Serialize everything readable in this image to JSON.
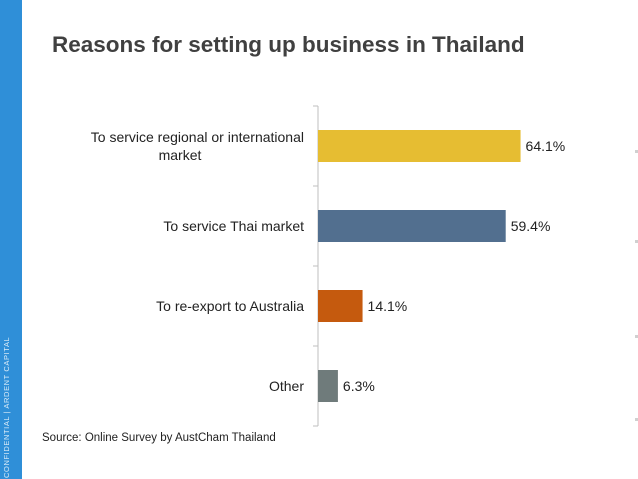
{
  "side_label": "CONFIDENTIAL  |  ARDENT CAPITAL",
  "source": "Source: Online Survey by AustCham Thailand",
  "colors": {
    "side_strip": "#2f8fd8",
    "axis": "#bfbfbf"
  },
  "chart_data": {
    "type": "bar",
    "orientation": "horizontal",
    "title": "Reasons for setting up business in Thailand",
    "categories": [
      [
        "To service regional or international",
        "market"
      ],
      [
        "To service Thai market"
      ],
      [
        "To re-export to Australia"
      ],
      [
        "Other"
      ]
    ],
    "values": [
      64.1,
      59.4,
      14.1,
      6.3
    ],
    "value_labels": [
      "64.1%",
      "59.4%",
      "14.1%",
      "6.3%"
    ],
    "bar_colors": [
      "#e6bd32",
      "#526f8f",
      "#c55a0e",
      "#6f7b7b"
    ],
    "xlim": [
      0,
      100
    ],
    "grid": false,
    "legend": "none"
  }
}
